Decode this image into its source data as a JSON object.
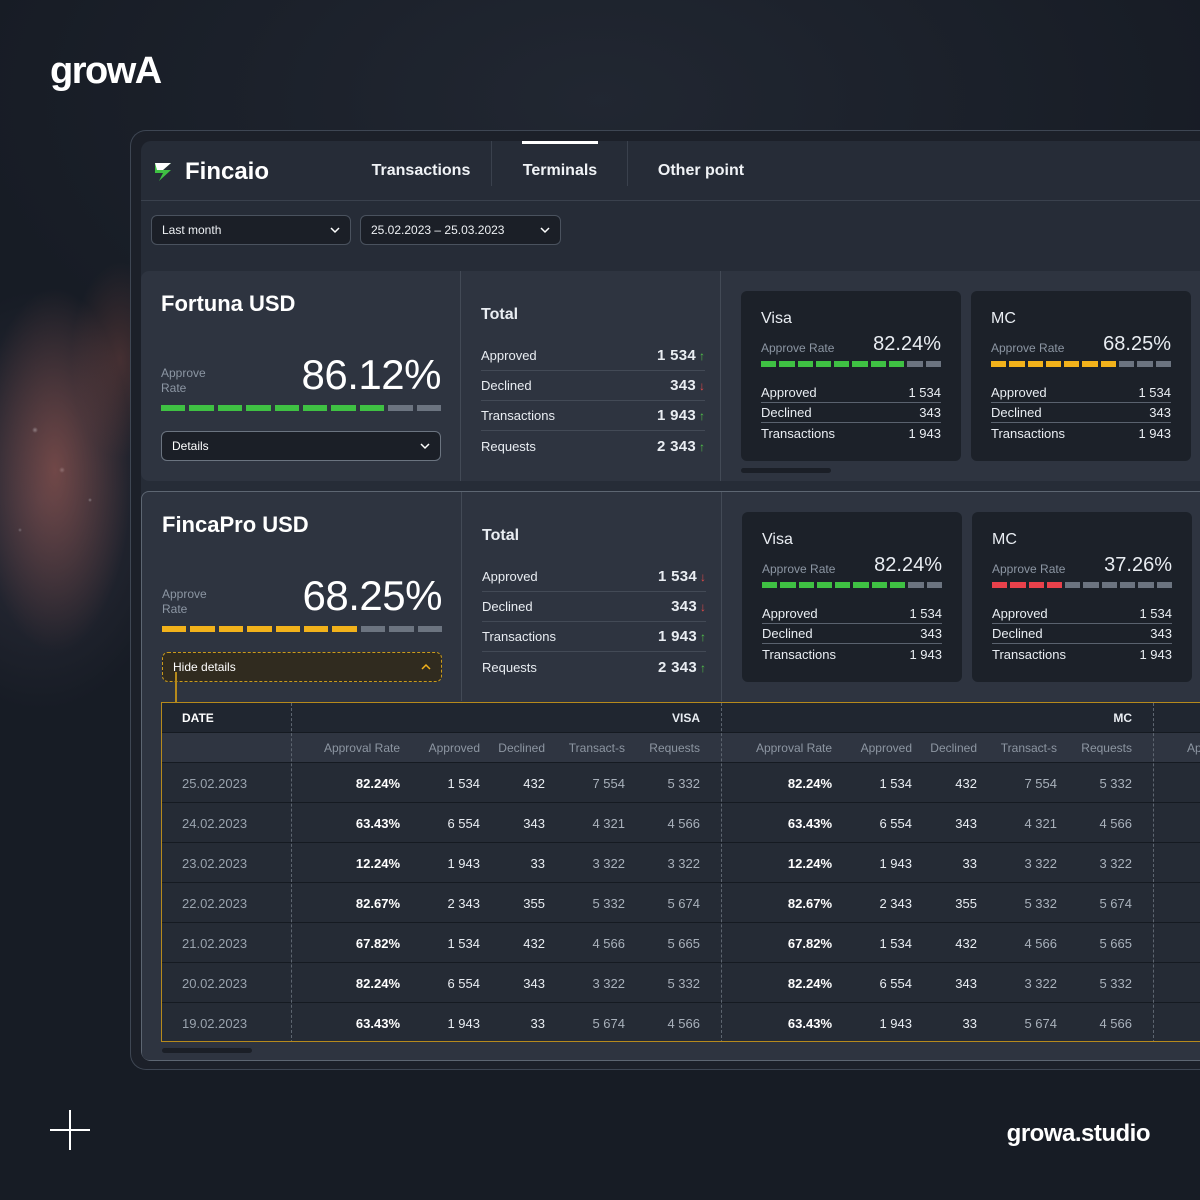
{
  "brand": "growA",
  "site": "growa.studio",
  "app": {
    "name": "Fincaio",
    "tabs": [
      {
        "label": "Transactions",
        "active": false
      },
      {
        "label": "Terminals",
        "active": true
      },
      {
        "label": "Other point",
        "active": false
      }
    ],
    "filters": {
      "period": "Last month",
      "range": "25.02.2023 – 25.03.2023"
    }
  },
  "colors": {
    "green": "#3fc143",
    "yellow": "#f2b21b",
    "red": "#e9414b",
    "gray": "#6c7480"
  },
  "cards": [
    {
      "title": "Fortuna USD",
      "approve_label": "Approve Rate",
      "rate": "86.12%",
      "bar_level": 0.8,
      "bar_color": "green",
      "details_label": "Details",
      "total_title": "Total",
      "totals": [
        {
          "label": "Approved",
          "value": "1 534",
          "trend": "up"
        },
        {
          "label": "Declined",
          "value": "343",
          "trend": "down"
        },
        {
          "label": "Transactions",
          "value": "1 943",
          "trend": "up"
        },
        {
          "label": "Requests",
          "value": "2 343",
          "trend": "up"
        }
      ],
      "networks": [
        {
          "name": "Visa",
          "approve_label": "Approve Rate",
          "rate": "82.24%",
          "bar_level": 0.8,
          "bar_color": "green",
          "rows": [
            {
              "label": "Approved",
              "value": "1 534"
            },
            {
              "label": "Declined",
              "value": "343"
            },
            {
              "label": "Transactions",
              "value": "1 943"
            }
          ]
        },
        {
          "name": "MC",
          "approve_label": "Approve Rate",
          "rate": "68.25%",
          "bar_level": 0.7,
          "bar_color": "yellow",
          "rows": [
            {
              "label": "Approved",
              "value": "1 534"
            },
            {
              "label": "Declined",
              "value": "343"
            },
            {
              "label": "Transactions",
              "value": "1 943"
            }
          ]
        }
      ]
    },
    {
      "title": "FincaPro USD",
      "approve_label": "Approve Rate",
      "rate": "68.25%",
      "bar_level": 0.7,
      "bar_color": "yellow",
      "details_label": "Hide details",
      "total_title": "Total",
      "totals": [
        {
          "label": "Approved",
          "value": "1 534",
          "trend": "down"
        },
        {
          "label": "Declined",
          "value": "343",
          "trend": "down"
        },
        {
          "label": "Transactions",
          "value": "1 943",
          "trend": "up"
        },
        {
          "label": "Requests",
          "value": "2 343",
          "trend": "up"
        }
      ],
      "networks": [
        {
          "name": "Visa",
          "approve_label": "Approve Rate",
          "rate": "82.24%",
          "bar_level": 0.8,
          "bar_color": "green",
          "rows": [
            {
              "label": "Approved",
              "value": "1 534"
            },
            {
              "label": "Declined",
              "value": "343"
            },
            {
              "label": "Transactions",
              "value": "1 943"
            }
          ]
        },
        {
          "name": "MC",
          "approve_label": "Approve Rate",
          "rate": "37.26%",
          "bar_level": 0.4,
          "bar_color": "red",
          "rows": [
            {
              "label": "Approved",
              "value": "1 534"
            },
            {
              "label": "Declined",
              "value": "343"
            },
            {
              "label": "Transactions",
              "value": "1 943"
            }
          ]
        }
      ]
    }
  ],
  "table": {
    "date_header": "DATE",
    "groups": [
      "VISA",
      "MC"
    ],
    "columns": [
      "Approval Rate",
      "Approved",
      "Declined",
      "Transact-s",
      "Requests"
    ],
    "cut_column": "App",
    "rows": [
      {
        "date": "25.02.2023",
        "visa": [
          "82.24%",
          "1 534",
          "432",
          "7 554",
          "5 332"
        ],
        "mc": [
          "82.24%",
          "1 534",
          "432",
          "7 554",
          "5 332"
        ]
      },
      {
        "date": "24.02.2023",
        "visa": [
          "63.43%",
          "6 554",
          "343",
          "4 321",
          "4 566"
        ],
        "mc": [
          "63.43%",
          "6 554",
          "343",
          "4 321",
          "4 566"
        ]
      },
      {
        "date": "23.02.2023",
        "visa": [
          "12.24%",
          "1 943",
          "33",
          "3 322",
          "3 322"
        ],
        "mc": [
          "12.24%",
          "1 943",
          "33",
          "3 322",
          "3 322"
        ]
      },
      {
        "date": "22.02.2023",
        "visa": [
          "82.67%",
          "2 343",
          "355",
          "5 332",
          "5 674"
        ],
        "mc": [
          "82.67%",
          "2 343",
          "355",
          "5 332",
          "5 674"
        ]
      },
      {
        "date": "21.02.2023",
        "visa": [
          "67.82%",
          "1 534",
          "432",
          "4 566",
          "5 665"
        ],
        "mc": [
          "67.82%",
          "1 534",
          "432",
          "4 566",
          "5 665"
        ]
      },
      {
        "date": "20.02.2023",
        "visa": [
          "82.24%",
          "6 554",
          "343",
          "3 322",
          "5 332"
        ],
        "mc": [
          "82.24%",
          "6 554",
          "343",
          "3 322",
          "5 332"
        ]
      },
      {
        "date": "19.02.2023",
        "visa": [
          "63.43%",
          "1 943",
          "33",
          "5 674",
          "4 566"
        ],
        "mc": [
          "63.43%",
          "1 943",
          "33",
          "5 674",
          "4 566"
        ]
      }
    ]
  }
}
